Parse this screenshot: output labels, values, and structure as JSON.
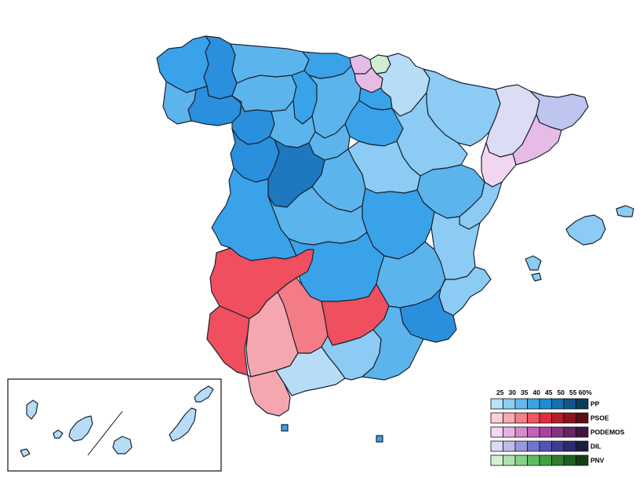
{
  "legend": {
    "thresholds": [
      "25",
      "30",
      "35",
      "40",
      "45",
      "50",
      "55",
      "60%"
    ],
    "parties": [
      {
        "name": "PP",
        "colors": [
          "#b9e1f9",
          "#8fcdf4",
          "#63b9ee",
          "#3aa3e6",
          "#1f8bd2",
          "#1470b0",
          "#0f5789",
          "#0a3c5e"
        ]
      },
      {
        "name": "PSOE",
        "colors": [
          "#fbd0d6",
          "#f8a9b1",
          "#f4808b",
          "#ef5562",
          "#e22e3e",
          "#b71c2b",
          "#8a1420",
          "#5c0c15"
        ]
      },
      {
        "name": "PODEMOS",
        "colors": [
          "#f4d7f0",
          "#e6b3e0",
          "#d68ccc",
          "#c363b7",
          "#a9449e",
          "#873480",
          "#632660",
          "#401740"
        ]
      },
      {
        "name": "DIL",
        "colors": [
          "#dcdcf5",
          "#bcbcec",
          "#9898de",
          "#7373cf",
          "#5252b8",
          "#3d3d94",
          "#2b2b6e",
          "#1b1b47"
        ]
      },
      {
        "name": "PNV",
        "colors": [
          "#d4f0d4",
          "#aee2ae",
          "#86d186",
          "#5fbd5f",
          "#3fa23f",
          "#2f7f2f",
          "#225e22",
          "#153d15"
        ]
      }
    ]
  },
  "colors": {
    "pp_25": "#b7dcf6",
    "pp_30": "#8ccbf3",
    "pp_35": "#5cb4ec",
    "pp_40": "#3aa2e8",
    "pp_45": "#2a8fdc",
    "pp_50": "#1d78c0",
    "psoe_30": "#f5a7b0",
    "psoe_35": "#f47c87",
    "psoe_40": "#ef4f5e",
    "podemos_25": "#f2d6f0",
    "podemos_30": "#e6bbe6",
    "dil_25": "#dcdcf5",
    "dil_30": "#bec5ee",
    "pnv_25": "#cfeed0",
    "ocean": "#ffffff"
  }
}
